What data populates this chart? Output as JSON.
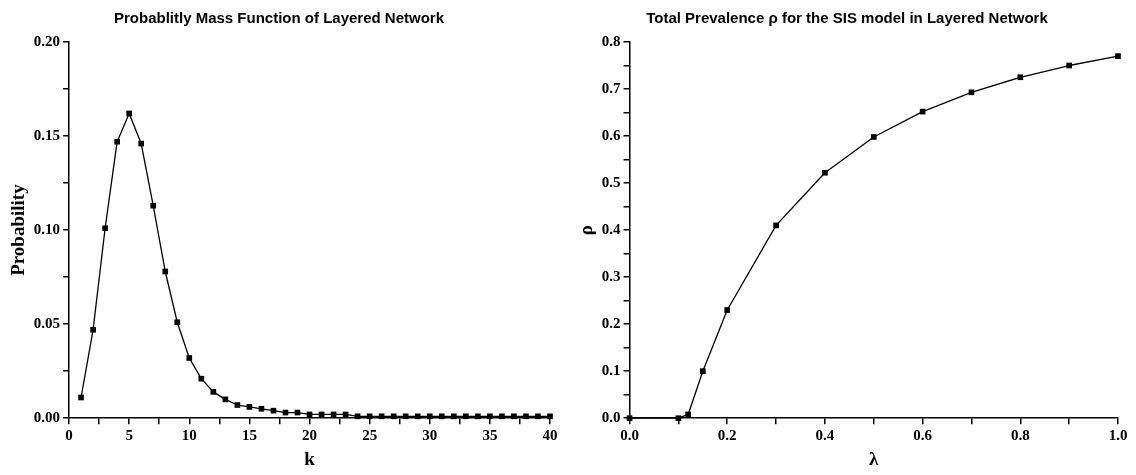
{
  "chart_data": [
    {
      "type": "line",
      "title": "Probablitly Mass Function of Layered Network",
      "xlabel": "k",
      "ylabel": "Probability",
      "x": [
        1,
        2,
        3,
        4,
        5,
        6,
        7,
        8,
        9,
        10,
        11,
        12,
        13,
        14,
        15,
        16,
        17,
        18,
        19,
        20,
        21,
        22,
        23,
        24,
        25,
        26,
        27,
        28,
        29,
        30,
        31,
        32,
        33,
        34,
        35,
        36,
        37,
        38,
        39,
        40
      ],
      "series": [
        {
          "color": "#000000",
          "values": [
            0.011,
            0.047,
            0.101,
            0.147,
            0.162,
            0.146,
            0.113,
            0.078,
            0.051,
            0.032,
            0.021,
            0.014,
            0.01,
            0.007,
            0.006,
            0.005,
            0.004,
            0.003,
            0.003,
            0.002,
            0.002,
            0.002,
            0.002,
            0.001,
            0.001,
            0.001,
            0.001,
            0.001,
            0.001,
            0.001,
            0.001,
            0.001,
            0.001,
            0.001,
            0.001,
            0.001,
            0.001,
            0.001,
            0.001,
            0.001
          ]
        }
      ],
      "xlim": [
        0,
        40
      ],
      "xticks": [
        0,
        {
          "value": 2.5,
          "label": null
        },
        5,
        {
          "value": 7.5,
          "label": null
        },
        10,
        {
          "value": 12.5,
          "label": null
        },
        15,
        {
          "value": 17.5,
          "label": null
        },
        20,
        {
          "value": 22.5,
          "label": null
        },
        25,
        {
          "value": 27.5,
          "label": null
        },
        30,
        {
          "value": 32.5,
          "label": null
        },
        35,
        {
          "value": 37.5,
          "label": null
        },
        40
      ],
      "ylim": [
        0,
        0.2
      ],
      "yticks": [
        {
          "value": 0,
          "label": "0.00"
        },
        {
          "value": 0.025,
          "label": null
        },
        {
          "value": 0.05,
          "label": "0.05"
        },
        {
          "value": 0.075,
          "label": null
        },
        {
          "value": 0.1,
          "label": "0.10"
        },
        {
          "value": 0.125,
          "label": null
        },
        {
          "value": 0.15,
          "label": "0.15"
        },
        {
          "value": 0.175,
          "label": null
        },
        {
          "value": 0.2,
          "label": "0.20"
        }
      ],
      "marker": "square",
      "line_style": "solid",
      "legend": false,
      "grid": false
    },
    {
      "type": "line",
      "title": "Total Prevalence ρ for the SIS model in Layered Network",
      "xlabel": "λ",
      "ylabel": "ρ",
      "x": [
        0,
        0.1,
        0.12,
        0.15,
        0.2,
        0.3,
        0.4,
        0.5,
        0.6,
        0.7,
        0.8,
        0.9,
        1.0
      ],
      "series": [
        {
          "color": "#000000",
          "values": [
            0,
            0,
            0.008,
            0.1,
            0.23,
            0.41,
            0.522,
            0.598,
            0.652,
            0.693,
            0.725,
            0.75,
            0.77
          ]
        }
      ],
      "xlim": [
        0,
        1
      ],
      "xticks": [
        {
          "value": 0,
          "label": "0.0"
        },
        {
          "value": 0.1,
          "label": null
        },
        {
          "value": 0.2,
          "label": "0.2"
        },
        {
          "value": 0.3,
          "label": null
        },
        {
          "value": 0.4,
          "label": "0.4"
        },
        {
          "value": 0.5,
          "label": null
        },
        {
          "value": 0.6,
          "label": "0.6"
        },
        {
          "value": 0.7,
          "label": null
        },
        {
          "value": 0.8,
          "label": "0.8"
        },
        {
          "value": 0.9,
          "label": null
        },
        {
          "value": 1,
          "label": "1.0"
        }
      ],
      "ylim": [
        0,
        0.8
      ],
      "yticks": [
        {
          "value": 0,
          "label": "0.0"
        },
        {
          "value": 0.05,
          "label": null
        },
        {
          "value": 0.1,
          "label": "0.1"
        },
        {
          "value": 0.15,
          "label": null
        },
        {
          "value": 0.2,
          "label": "0.2"
        },
        {
          "value": 0.25,
          "label": null
        },
        {
          "value": 0.3,
          "label": "0.3"
        },
        {
          "value": 0.35,
          "label": null
        },
        {
          "value": 0.4,
          "label": "0.4"
        },
        {
          "value": 0.45,
          "label": null
        },
        {
          "value": 0.5,
          "label": "0.5"
        },
        {
          "value": 0.55,
          "label": null
        },
        {
          "value": 0.6,
          "label": "0.6"
        },
        {
          "value": 0.65,
          "label": null
        },
        {
          "value": 0.7,
          "label": "0.7"
        },
        {
          "value": 0.75,
          "label": null
        },
        {
          "value": 0.8,
          "label": "0.8"
        }
      ],
      "marker": "square",
      "line_style": "solid",
      "legend": false,
      "grid": false
    }
  ]
}
